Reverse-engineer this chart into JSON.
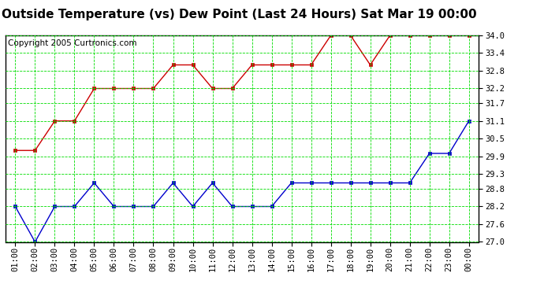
{
  "title": "Outside Temperature (vs) Dew Point (Last 24 Hours) Sat Mar 19 00:00",
  "copyright": "Copyright 2005 Curtronics.com",
  "x_labels": [
    "01:00",
    "02:00",
    "03:00",
    "04:00",
    "05:00",
    "06:00",
    "07:00",
    "08:00",
    "09:00",
    "10:00",
    "11:00",
    "12:00",
    "13:00",
    "14:00",
    "15:00",
    "16:00",
    "17:00",
    "18:00",
    "19:00",
    "20:00",
    "21:00",
    "22:00",
    "23:00",
    "00:00"
  ],
  "x_ticks": [
    1,
    2,
    3,
    4,
    5,
    6,
    7,
    8,
    9,
    10,
    11,
    12,
    13,
    14,
    15,
    16,
    17,
    18,
    19,
    20,
    21,
    22,
    23,
    24
  ],
  "red_data": [
    30.1,
    30.1,
    31.1,
    31.1,
    32.2,
    32.2,
    32.2,
    32.2,
    33.0,
    33.0,
    32.2,
    32.2,
    33.0,
    33.0,
    33.0,
    33.0,
    34.0,
    34.0,
    33.0,
    34.0,
    34.0,
    34.0,
    34.0,
    34.0
  ],
  "blue_data": [
    28.2,
    27.0,
    28.2,
    28.2,
    29.0,
    28.2,
    28.2,
    28.2,
    29.0,
    28.2,
    29.0,
    28.2,
    28.2,
    28.2,
    29.0,
    29.0,
    29.0,
    29.0,
    29.0,
    29.0,
    29.0,
    30.0,
    30.0,
    31.1
  ],
  "ylim_min": 27.0,
  "ylim_max": 34.0,
  "yticks": [
    27.0,
    27.6,
    28.2,
    28.8,
    29.3,
    29.9,
    30.5,
    31.1,
    31.7,
    32.2,
    32.8,
    33.4,
    34.0
  ],
  "bg_color": "#ffffff",
  "plot_bg_color": "#ffffff",
  "grid_color": "#00dd00",
  "red_color": "#cc0000",
  "blue_color": "#0000cc",
  "title_fontsize": 11,
  "copyright_fontsize": 7.5
}
